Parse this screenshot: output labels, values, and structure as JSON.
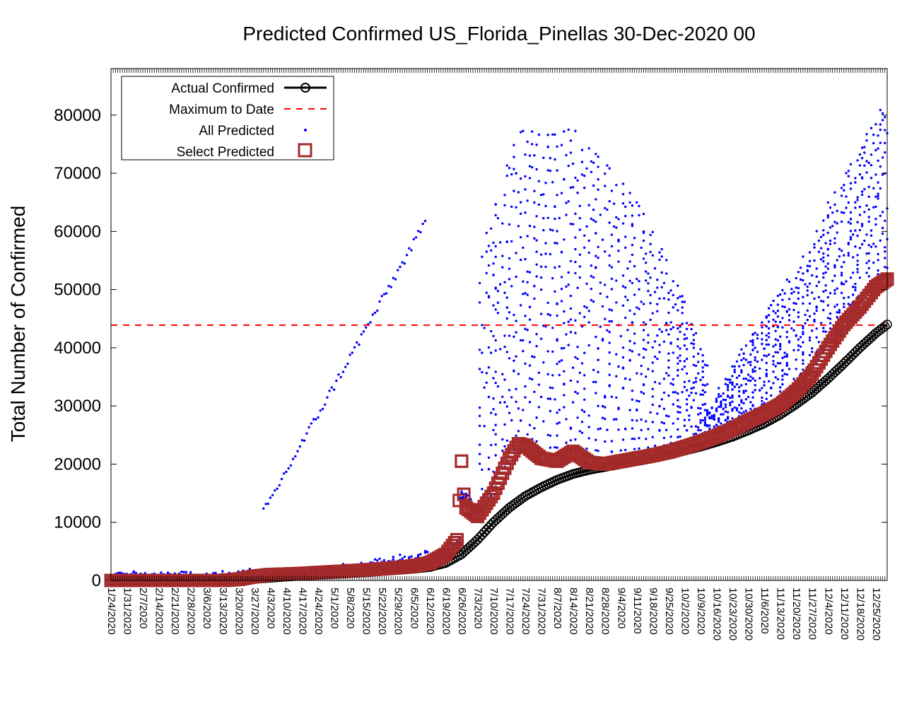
{
  "chart_data": {
    "type": "scatter",
    "title": "Predicted Confirmed US_Florida_Pinellas 30-Dec-2020 00",
    "xlabel": "",
    "ylabel": "Total Number of Confirmed",
    "xlim": [
      "1/24/2020",
      "12/30/2020"
    ],
    "ylim": [
      0,
      88000
    ],
    "yticks": [
      0,
      10000,
      20000,
      30000,
      40000,
      50000,
      60000,
      70000,
      80000
    ],
    "xticks": [
      "1/24/2020",
      "1/31/2020",
      "2/7/2020",
      "2/14/2020",
      "2/21/2020",
      "2/28/2020",
      "3/6/2020",
      "3/13/2020",
      "3/20/2020",
      "3/27/2020",
      "4/3/2020",
      "4/10/2020",
      "4/17/2020",
      "4/24/2020",
      "5/1/2020",
      "5/8/2020",
      "5/15/2020",
      "5/22/2020",
      "5/29/2020",
      "6/5/2020",
      "6/12/2020",
      "6/19/2020",
      "6/26/2020",
      "7/3/2020",
      "7/10/2020",
      "7/17/2020",
      "7/24/2020",
      "7/31/2020",
      "8/7/2020",
      "8/14/2020",
      "8/21/2020",
      "8/28/2020",
      "9/4/2020",
      "9/11/2020",
      "9/18/2020",
      "9/25/2020",
      "10/2/2020",
      "10/9/2020",
      "10/16/2020",
      "10/23/2020",
      "10/30/2020",
      "11/6/2020",
      "11/13/2020",
      "11/20/2020",
      "11/27/2020",
      "12/4/2020",
      "12/11/2020",
      "12/18/2020",
      "12/25/2020"
    ],
    "grid": false,
    "legend_position": "top-left",
    "legend": [
      "Actual Confirmed",
      "Maximum to Date",
      "All Predicted",
      "Select Predicted"
    ],
    "series": [
      {
        "name": "Actual Confirmed",
        "style": "line-with-circle-markers",
        "color": "#000000",
        "points": [
          [
            "1/24/2020",
            0
          ],
          [
            "3/13/2020",
            0
          ],
          [
            "3/20/2020",
            50
          ],
          [
            "3/27/2020",
            250
          ],
          [
            "4/3/2020",
            450
          ],
          [
            "4/10/2020",
            650
          ],
          [
            "4/17/2020",
            800
          ],
          [
            "4/24/2020",
            950
          ],
          [
            "5/1/2020",
            1100
          ],
          [
            "5/8/2020",
            1250
          ],
          [
            "5/15/2020",
            1400
          ],
          [
            "5/22/2020",
            1600
          ],
          [
            "5/29/2020",
            1800
          ],
          [
            "6/5/2020",
            2000
          ],
          [
            "6/12/2020",
            2300
          ],
          [
            "6/19/2020",
            3000
          ],
          [
            "6/26/2020",
            4500
          ],
          [
            "7/3/2020",
            7000
          ],
          [
            "7/10/2020",
            10000
          ],
          [
            "7/17/2020",
            12500
          ],
          [
            "7/24/2020",
            14500
          ],
          [
            "7/31/2020",
            16000
          ],
          [
            "8/7/2020",
            17300
          ],
          [
            "8/14/2020",
            18300
          ],
          [
            "8/21/2020",
            19000
          ],
          [
            "8/28/2020",
            19500
          ],
          [
            "9/4/2020",
            20000
          ],
          [
            "9/11/2020",
            20500
          ],
          [
            "9/18/2020",
            21000
          ],
          [
            "9/25/2020",
            21700
          ],
          [
            "10/2/2020",
            22300
          ],
          [
            "10/9/2020",
            23000
          ],
          [
            "10/16/2020",
            23800
          ],
          [
            "10/23/2020",
            24700
          ],
          [
            "10/30/2020",
            25800
          ],
          [
            "11/6/2020",
            27000
          ],
          [
            "11/13/2020",
            28500
          ],
          [
            "11/20/2020",
            30300
          ],
          [
            "11/27/2020",
            32300
          ],
          [
            "12/4/2020",
            34700
          ],
          [
            "12/11/2020",
            37300
          ],
          [
            "12/18/2020",
            40000
          ],
          [
            "12/25/2020",
            42500
          ],
          [
            "12/30/2020",
            44000
          ]
        ]
      },
      {
        "name": "Maximum to Date",
        "style": "dashed-line",
        "color": "#ff0000",
        "value": 43900
      },
      {
        "name": "All Predicted",
        "style": "dots",
        "color": "#0000ff",
        "note": "dense cloud of model forecasts from each fit date"
      },
      {
        "name": "Select Predicted",
        "style": "square-markers",
        "color": "#a52a2a",
        "points": [
          [
            "1/24/2020",
            0
          ],
          [
            "3/13/2020",
            0
          ],
          [
            "3/20/2020",
            200
          ],
          [
            "3/27/2020",
            700
          ],
          [
            "4/3/2020",
            1000
          ],
          [
            "4/10/2020",
            1100
          ],
          [
            "4/17/2020",
            1200
          ],
          [
            "4/24/2020",
            1350
          ],
          [
            "5/1/2020",
            1500
          ],
          [
            "5/8/2020",
            1650
          ],
          [
            "5/15/2020",
            1800
          ],
          [
            "5/22/2020",
            2000
          ],
          [
            "5/29/2020",
            2200
          ],
          [
            "6/5/2020",
            2500
          ],
          [
            "6/12/2020",
            3000
          ],
          [
            "6/19/2020",
            4500
          ],
          [
            "6/24/2020",
            7000
          ],
          [
            "6/26/2020",
            20500
          ],
          [
            "6/27/2020",
            14800
          ],
          [
            "6/28/2020",
            12500
          ],
          [
            "7/3/2020",
            11000
          ],
          [
            "7/10/2020",
            15000
          ],
          [
            "7/17/2020",
            21000
          ],
          [
            "7/21/2020",
            23500
          ],
          [
            "7/24/2020",
            23200
          ],
          [
            "7/31/2020",
            21000
          ],
          [
            "8/7/2020",
            20500
          ],
          [
            "8/14/2020",
            22200
          ],
          [
            "8/21/2020",
            20300
          ],
          [
            "8/28/2020",
            20000
          ],
          [
            "9/4/2020",
            20500
          ],
          [
            "9/11/2020",
            21000
          ],
          [
            "9/18/2020",
            21500
          ],
          [
            "9/25/2020",
            22100
          ],
          [
            "10/2/2020",
            22900
          ],
          [
            "10/9/2020",
            23800
          ],
          [
            "10/16/2020",
            24800
          ],
          [
            "10/23/2020",
            26000
          ],
          [
            "10/30/2020",
            27400
          ],
          [
            "11/6/2020",
            28700
          ],
          [
            "11/13/2020",
            30200
          ],
          [
            "11/20/2020",
            32500
          ],
          [
            "11/27/2020",
            35500
          ],
          [
            "12/4/2020",
            40000
          ],
          [
            "12/11/2020",
            44000
          ],
          [
            "12/18/2020",
            47000
          ],
          [
            "12/25/2020",
            50500
          ],
          [
            "12/30/2020",
            51800
          ]
        ]
      }
    ]
  }
}
